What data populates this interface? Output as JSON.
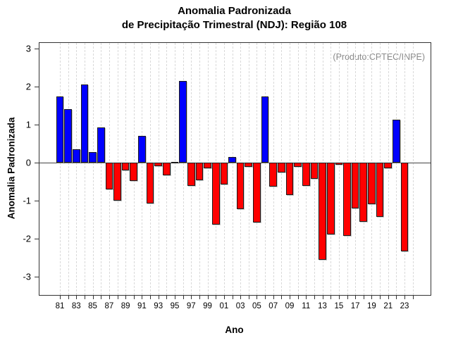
{
  "title": {
    "line1": "Anomalia Padronizada",
    "line2": "de Precipitação Trimestral (NDJ): Região 108"
  },
  "annotation": "(Produto:CPTEC/INPE)",
  "chart_data": {
    "type": "bar",
    "title": "Anomalia Padronizada de Precipitação Trimestral (NDJ): Região 108",
    "xlabel": "Ano",
    "ylabel": "Anomalia Padronizada",
    "ylim": [
      -3.5,
      3.15
    ],
    "y_ticks": [
      3,
      2,
      1,
      0,
      -1,
      -2,
      -3
    ],
    "grid": "vertical-dashed-per-year",
    "legend": "none",
    "colors": {
      "positive": "#0000ff",
      "negative": "#ff0000",
      "bar_border": "#1a1a1a"
    },
    "x_axis_years": [
      1981,
      2024
    ],
    "x_tick_labels": [
      "81",
      "83",
      "85",
      "87",
      "89",
      "91",
      "93",
      "95",
      "97",
      "99",
      "01",
      "03",
      "05",
      "07",
      "09",
      "11",
      "13",
      "15",
      "17",
      "19",
      "21",
      "23"
    ],
    "x": [
      1981,
      1982,
      1983,
      1984,
      1985,
      1986,
      1987,
      1988,
      1989,
      1990,
      1991,
      1992,
      1993,
      1994,
      1995,
      1996,
      1997,
      1998,
      1999,
      2000,
      2001,
      2002,
      2003,
      2004,
      2005,
      2006,
      2007,
      2008,
      2009,
      2010,
      2011,
      2012,
      2013,
      2014,
      2015,
      2016,
      2017,
      2018,
      2019,
      2020,
      2021,
      2022,
      2023
    ],
    "values": [
      1.75,
      1.4,
      0.35,
      2.05,
      0.28,
      0.92,
      -0.7,
      -1.0,
      -0.2,
      -0.49,
      0.7,
      -1.08,
      -0.1,
      -0.33,
      0.0,
      2.15,
      -0.62,
      -0.46,
      -0.14,
      -1.63,
      -0.57,
      0.14,
      -1.22,
      -0.11,
      -1.58,
      1.75,
      -0.63,
      -0.26,
      -0.86,
      -0.11,
      -0.62,
      -0.42,
      -2.55,
      -1.88,
      -0.06,
      -1.93,
      -1.2,
      -1.55,
      -1.1,
      -1.42,
      -0.14,
      1.13,
      -2.33
    ]
  }
}
